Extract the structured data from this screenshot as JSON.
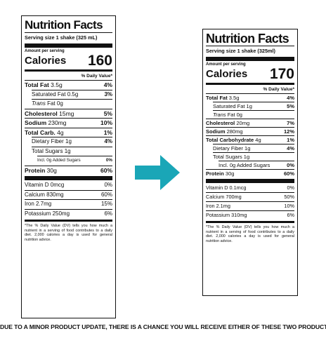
{
  "left": {
    "title": "Nutrition Facts",
    "serving": "Serving size   1 shake (325 mL)",
    "amount_per_serving": "Amount per serving",
    "calories_label": "Calories",
    "calories_value": "160",
    "dv_header": "% Daily Value*",
    "rows": [
      {
        "pre": "Total Fat",
        "amt": " 3.5g",
        "dv": "4%"
      },
      {
        "pre": "Saturated Fat",
        "amt": " 0.5g",
        "dv": "3%"
      },
      {
        "pre": "Trans",
        "amt": " Fat 0g",
        "dv": ""
      },
      {
        "pre": "Cholesterol",
        "amt": " 15mg",
        "dv": "5%"
      },
      {
        "pre": "Sodium",
        "amt": " 230mg",
        "dv": "10%"
      },
      {
        "pre": "Total Carb.",
        "amt": " 4g",
        "dv": "1%"
      },
      {
        "pre": "Dietary Fiber",
        "amt": " 1g",
        "dv": "4%"
      },
      {
        "pre": "Total Sugars",
        "amt": " 1g",
        "dv": ""
      },
      {
        "pre": "Incl. 0g Added Sugars",
        "amt": "",
        "dv": "0%"
      },
      {
        "pre": "Protein",
        "amt": " 30g",
        "dv": "60%"
      }
    ],
    "vitamins": [
      {
        "name": "Vitamin D 0mcg",
        "dv": "0%"
      },
      {
        "name": "Calcium 830mg",
        "dv": "60%"
      },
      {
        "name": "Iron 2.7mg",
        "dv": "15%"
      },
      {
        "name": "Potassium 250mg",
        "dv": "6%"
      }
    ],
    "footnote": "*The % Daily Value (DV) tells you how much a nutrient in a serving of food contributes to a daily diet. 2,000 calories a day is used for general nutrition advice."
  },
  "right": {
    "title": "Nutrition Facts",
    "serving": "Serving size   1 shake (325ml)",
    "amount_per_serving": "Amount per serving",
    "calories_label": "Calories",
    "calories_value": "170",
    "dv_header": "% Daily Value*",
    "rows": [
      {
        "pre": "Total Fat",
        "amt": " 3.5g",
        "dv": "4%"
      },
      {
        "pre": "Saturated Fat",
        "amt": " 1g",
        "dv": "5%"
      },
      {
        "pre": "Trans",
        "amt": " Fat 0g",
        "dv": ""
      },
      {
        "pre": "Cholesterol",
        "amt": " 20mg",
        "dv": "7%"
      },
      {
        "pre": "Sodium",
        "amt": " 280mg",
        "dv": "12%"
      },
      {
        "pre": "Total Carbohydrate",
        "amt": " 4g",
        "dv": "1%"
      },
      {
        "pre": "Dietary Fiber",
        "amt": " 1g",
        "dv": "4%"
      },
      {
        "pre": "Total Sugars",
        "amt": " 1g",
        "dv": ""
      },
      {
        "pre": "Incl. 0g Added Sugars",
        "amt": "",
        "dv": "0%"
      },
      {
        "pre": "Protein",
        "amt": " 30g",
        "dv": "60%"
      }
    ],
    "vitamins": [
      {
        "name": "Vitamin D 0.1mcg",
        "dv": "0%"
      },
      {
        "name": "Calcium 700mg",
        "dv": "50%"
      },
      {
        "name": "Iron 2.1mg",
        "dv": "10%"
      },
      {
        "name": "Potassium 310mg",
        "dv": "6%"
      }
    ],
    "footnote": "*The % Daily Value (DV) tells you how much a nutrient in a serving of food contributes to a daily diet. 2,000 calories a day is used for general nutrition advice."
  },
  "arrow_color": "#1aa6b7",
  "arrow_icon": "right-arrow-icon",
  "caption": "DUE TO A MINOR PRODUCT UPDATE, THERE IS A CHANCE YOU WILL RECEIVE EITHER OF THESE TWO PRODUCTS."
}
